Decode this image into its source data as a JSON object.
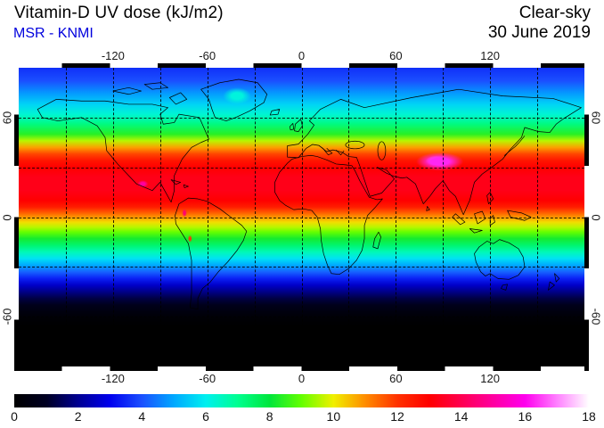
{
  "header": {
    "title": "Vitamin-D UV dose (kJ/m2)",
    "subtitle": "MSR - KNMI",
    "subtitle_color": "#0000dd",
    "condition": "Clear-sky",
    "date": "30 June 2019"
  },
  "axes": {
    "lon_ticks": [
      {
        "label": "-120",
        "value": -120
      },
      {
        "label": "-60",
        "value": -60
      },
      {
        "label": "0",
        "value": 0
      },
      {
        "label": "60",
        "value": 60
      },
      {
        "label": "120",
        "value": 120
      }
    ],
    "lat_ticks": [
      {
        "label": "60",
        "value": 60
      },
      {
        "label": "0",
        "value": 0
      },
      {
        "label": "-60",
        "value": -60
      }
    ],
    "grid_lon_step_deg": 30,
    "grid_lat_step_deg": 30
  },
  "chart_data": {
    "type": "heatmap",
    "title": "Vitamin-D UV dose (kJ/m2)",
    "source": "MSR - KNMI",
    "sky_condition": "Clear-sky",
    "date": "30 June 2019",
    "units": "kJ/m2",
    "projection": "equirectangular world map",
    "lon_range": [
      -180,
      180
    ],
    "lat_range": [
      -90,
      90
    ],
    "grid": "dashed black lines every 30 degrees",
    "colorbar": {
      "min": 0,
      "max": 18,
      "orientation": "horizontal-bottom",
      "tick_labels": [
        "0",
        "2",
        "4",
        "6",
        "8",
        "10",
        "12",
        "14",
        "16",
        "18"
      ],
      "tick_values": [
        0,
        2,
        4,
        6,
        8,
        10,
        12,
        14,
        16,
        18
      ],
      "stops": [
        {
          "v": 0,
          "c": "#000000"
        },
        {
          "v": 1,
          "c": "#000022"
        },
        {
          "v": 2,
          "c": "#000092"
        },
        {
          "v": 3,
          "c": "#0000ee"
        },
        {
          "v": 4,
          "c": "#1b50ff"
        },
        {
          "v": 5,
          "c": "#00a8ff"
        },
        {
          "v": 6,
          "c": "#00f0f0"
        },
        {
          "v": 7,
          "c": "#00ff90"
        },
        {
          "v": 8,
          "c": "#00e63c"
        },
        {
          "v": 9,
          "c": "#64ff00"
        },
        {
          "v": 10,
          "c": "#f0f000"
        },
        {
          "v": 11,
          "c": "#ff8c00"
        },
        {
          "v": 12,
          "c": "#ff3200"
        },
        {
          "v": 13,
          "c": "#ff0000"
        },
        {
          "v": 14,
          "c": "#ff0050"
        },
        {
          "v": 15,
          "c": "#ff00a0"
        },
        {
          "v": 16,
          "c": "#ff00ee"
        },
        {
          "v": 17,
          "c": "#ff80ff"
        },
        {
          "v": 18,
          "c": "#ffffff"
        }
      ]
    },
    "zonal_mean_profile": [
      {
        "lat": 90,
        "value": 3.6
      },
      {
        "lat": 82,
        "value": 4.0
      },
      {
        "lat": 75,
        "value": 4.8
      },
      {
        "lat": 68,
        "value": 5.6
      },
      {
        "lat": 62,
        "value": 6.3
      },
      {
        "lat": 56,
        "value": 7.2
      },
      {
        "lat": 50,
        "value": 8.4
      },
      {
        "lat": 46,
        "value": 9.6
      },
      {
        "lat": 42,
        "value": 10.8
      },
      {
        "lat": 38,
        "value": 11.8
      },
      {
        "lat": 34,
        "value": 12.6
      },
      {
        "lat": 30,
        "value": 13.0
      },
      {
        "lat": 24,
        "value": 13.3
      },
      {
        "lat": 16,
        "value": 13.3
      },
      {
        "lat": 10,
        "value": 13.0
      },
      {
        "lat": 6,
        "value": 12.4
      },
      {
        "lat": 3,
        "value": 11.6
      },
      {
        "lat": 0,
        "value": 10.9
      },
      {
        "lat": -3,
        "value": 10.2
      },
      {
        "lat": -6,
        "value": 9.6
      },
      {
        "lat": -9,
        "value": 9.0
      },
      {
        "lat": -13,
        "value": 8.2
      },
      {
        "lat": -17,
        "value": 7.4
      },
      {
        "lat": -21,
        "value": 6.6
      },
      {
        "lat": -25,
        "value": 5.8
      },
      {
        "lat": -29,
        "value": 5.0
      },
      {
        "lat": -33,
        "value": 4.2
      },
      {
        "lat": -37,
        "value": 3.4
      },
      {
        "lat": -41,
        "value": 2.6
      },
      {
        "lat": -45,
        "value": 1.9
      },
      {
        "lat": -49,
        "value": 1.3
      },
      {
        "lat": -53,
        "value": 0.8
      },
      {
        "lat": -57,
        "value": 0.4
      },
      {
        "lat": -61,
        "value": 0.15
      },
      {
        "lat": -66,
        "value": 0.0
      },
      {
        "lat": -90,
        "value": 0.0
      }
    ],
    "hotspots": [
      {
        "region": "Tibetan Plateau",
        "lon": 88,
        "lat": 33.5,
        "rx_deg": 15,
        "ry_deg": 5.5,
        "value": 16.3
      },
      {
        "region": "Tibetan Plateau core",
        "lon": 86,
        "lat": 34,
        "rx_deg": 7,
        "ry_deg": 3,
        "value": 17.4
      },
      {
        "region": "Mexican Plateau",
        "lon": -101,
        "lat": 20,
        "rx_deg": 3.5,
        "ry_deg": 2.2,
        "value": 15.0
      },
      {
        "region": "Colombian Andes",
        "lon": -74.5,
        "lat": 2.5,
        "rx_deg": 1.6,
        "ry_deg": 2.6,
        "value": 14.4
      },
      {
        "region": "Peruvian Andes",
        "lon": -71,
        "lat": -13,
        "rx_deg": 1.4,
        "ry_deg": 2.2,
        "value": 12.0
      },
      {
        "region": "Greenland ice sheet",
        "lon": -41,
        "lat": 73,
        "rx_deg": 9,
        "ry_deg": 5,
        "value": 6.2
      }
    ]
  }
}
